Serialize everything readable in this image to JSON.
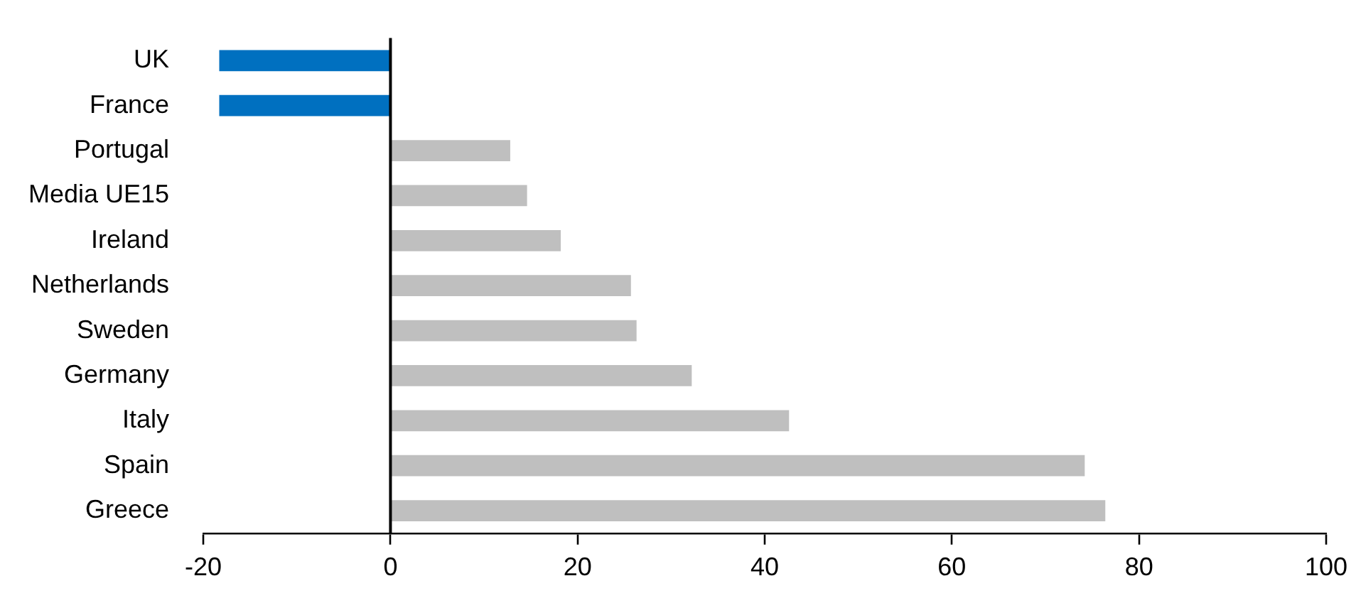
{
  "chart_data": {
    "type": "bar",
    "orientation": "horizontal",
    "categories": [
      "UK",
      "France",
      "Portugal",
      "Media UE15",
      "Ireland",
      "Netherlands",
      "Sweden",
      "Germany",
      "Italy",
      "Spain",
      "Greece"
    ],
    "values": [
      -18.3,
      -18.3,
      12.8,
      14.6,
      18.2,
      25.7,
      26.3,
      32.2,
      42.6,
      74.2,
      76.4
    ],
    "colors": [
      "#0070c0",
      "#0070c0",
      "#bfbfbf",
      "#bfbfbf",
      "#bfbfbf",
      "#bfbfbf",
      "#bfbfbf",
      "#bfbfbf",
      "#bfbfbf",
      "#bfbfbf",
      "#bfbfbf"
    ],
    "xlim": [
      -20,
      100
    ],
    "xticks": [
      -20,
      0,
      20,
      40,
      60,
      80,
      100
    ],
    "ref_lines": [
      {
        "axis": "x",
        "value": 0,
        "color": "#000000"
      }
    ],
    "grid": false,
    "legend": false
  }
}
